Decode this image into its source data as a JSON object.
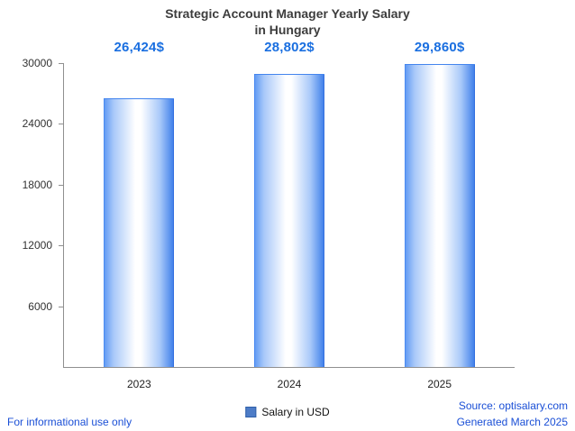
{
  "title": {
    "line1": "Strategic Account Manager Yearly Salary",
    "line2": "in Hungary"
  },
  "chart_data": {
    "type": "bar",
    "title": "Strategic Account Manager Yearly Salary in Hungary",
    "categories": [
      "2023",
      "2024",
      "2025"
    ],
    "values": [
      26424,
      28802,
      29860
    ],
    "value_labels": [
      "26,424$",
      "28,802$",
      "29,860$"
    ],
    "series_name": "Salary in USD",
    "xlabel": "",
    "ylabel": "",
    "ylim": [
      0,
      30000
    ],
    "yticks": [
      6000,
      12000,
      18000,
      24000,
      30000
    ],
    "ytick_labels": [
      "6000",
      "12000",
      "18000",
      "24000",
      "30000"
    ],
    "grid": false,
    "legend_position": "bottom",
    "bar_gradient": [
      "#5c97f3",
      "#ffffff",
      "#3b7de9"
    ]
  },
  "legend": {
    "label": "Salary in USD",
    "swatch_color": "#4d7cc7"
  },
  "footer": {
    "disclaimer": "For informational use only",
    "source": "Source: optisalary.com",
    "generated": "Generated March 2025"
  },
  "colors": {
    "value_label_blue": "#1a6fe0",
    "link_blue": "#1a4fd6",
    "title_text": "#3d3d3d",
    "axis_gray": "#8f8f8f"
  }
}
